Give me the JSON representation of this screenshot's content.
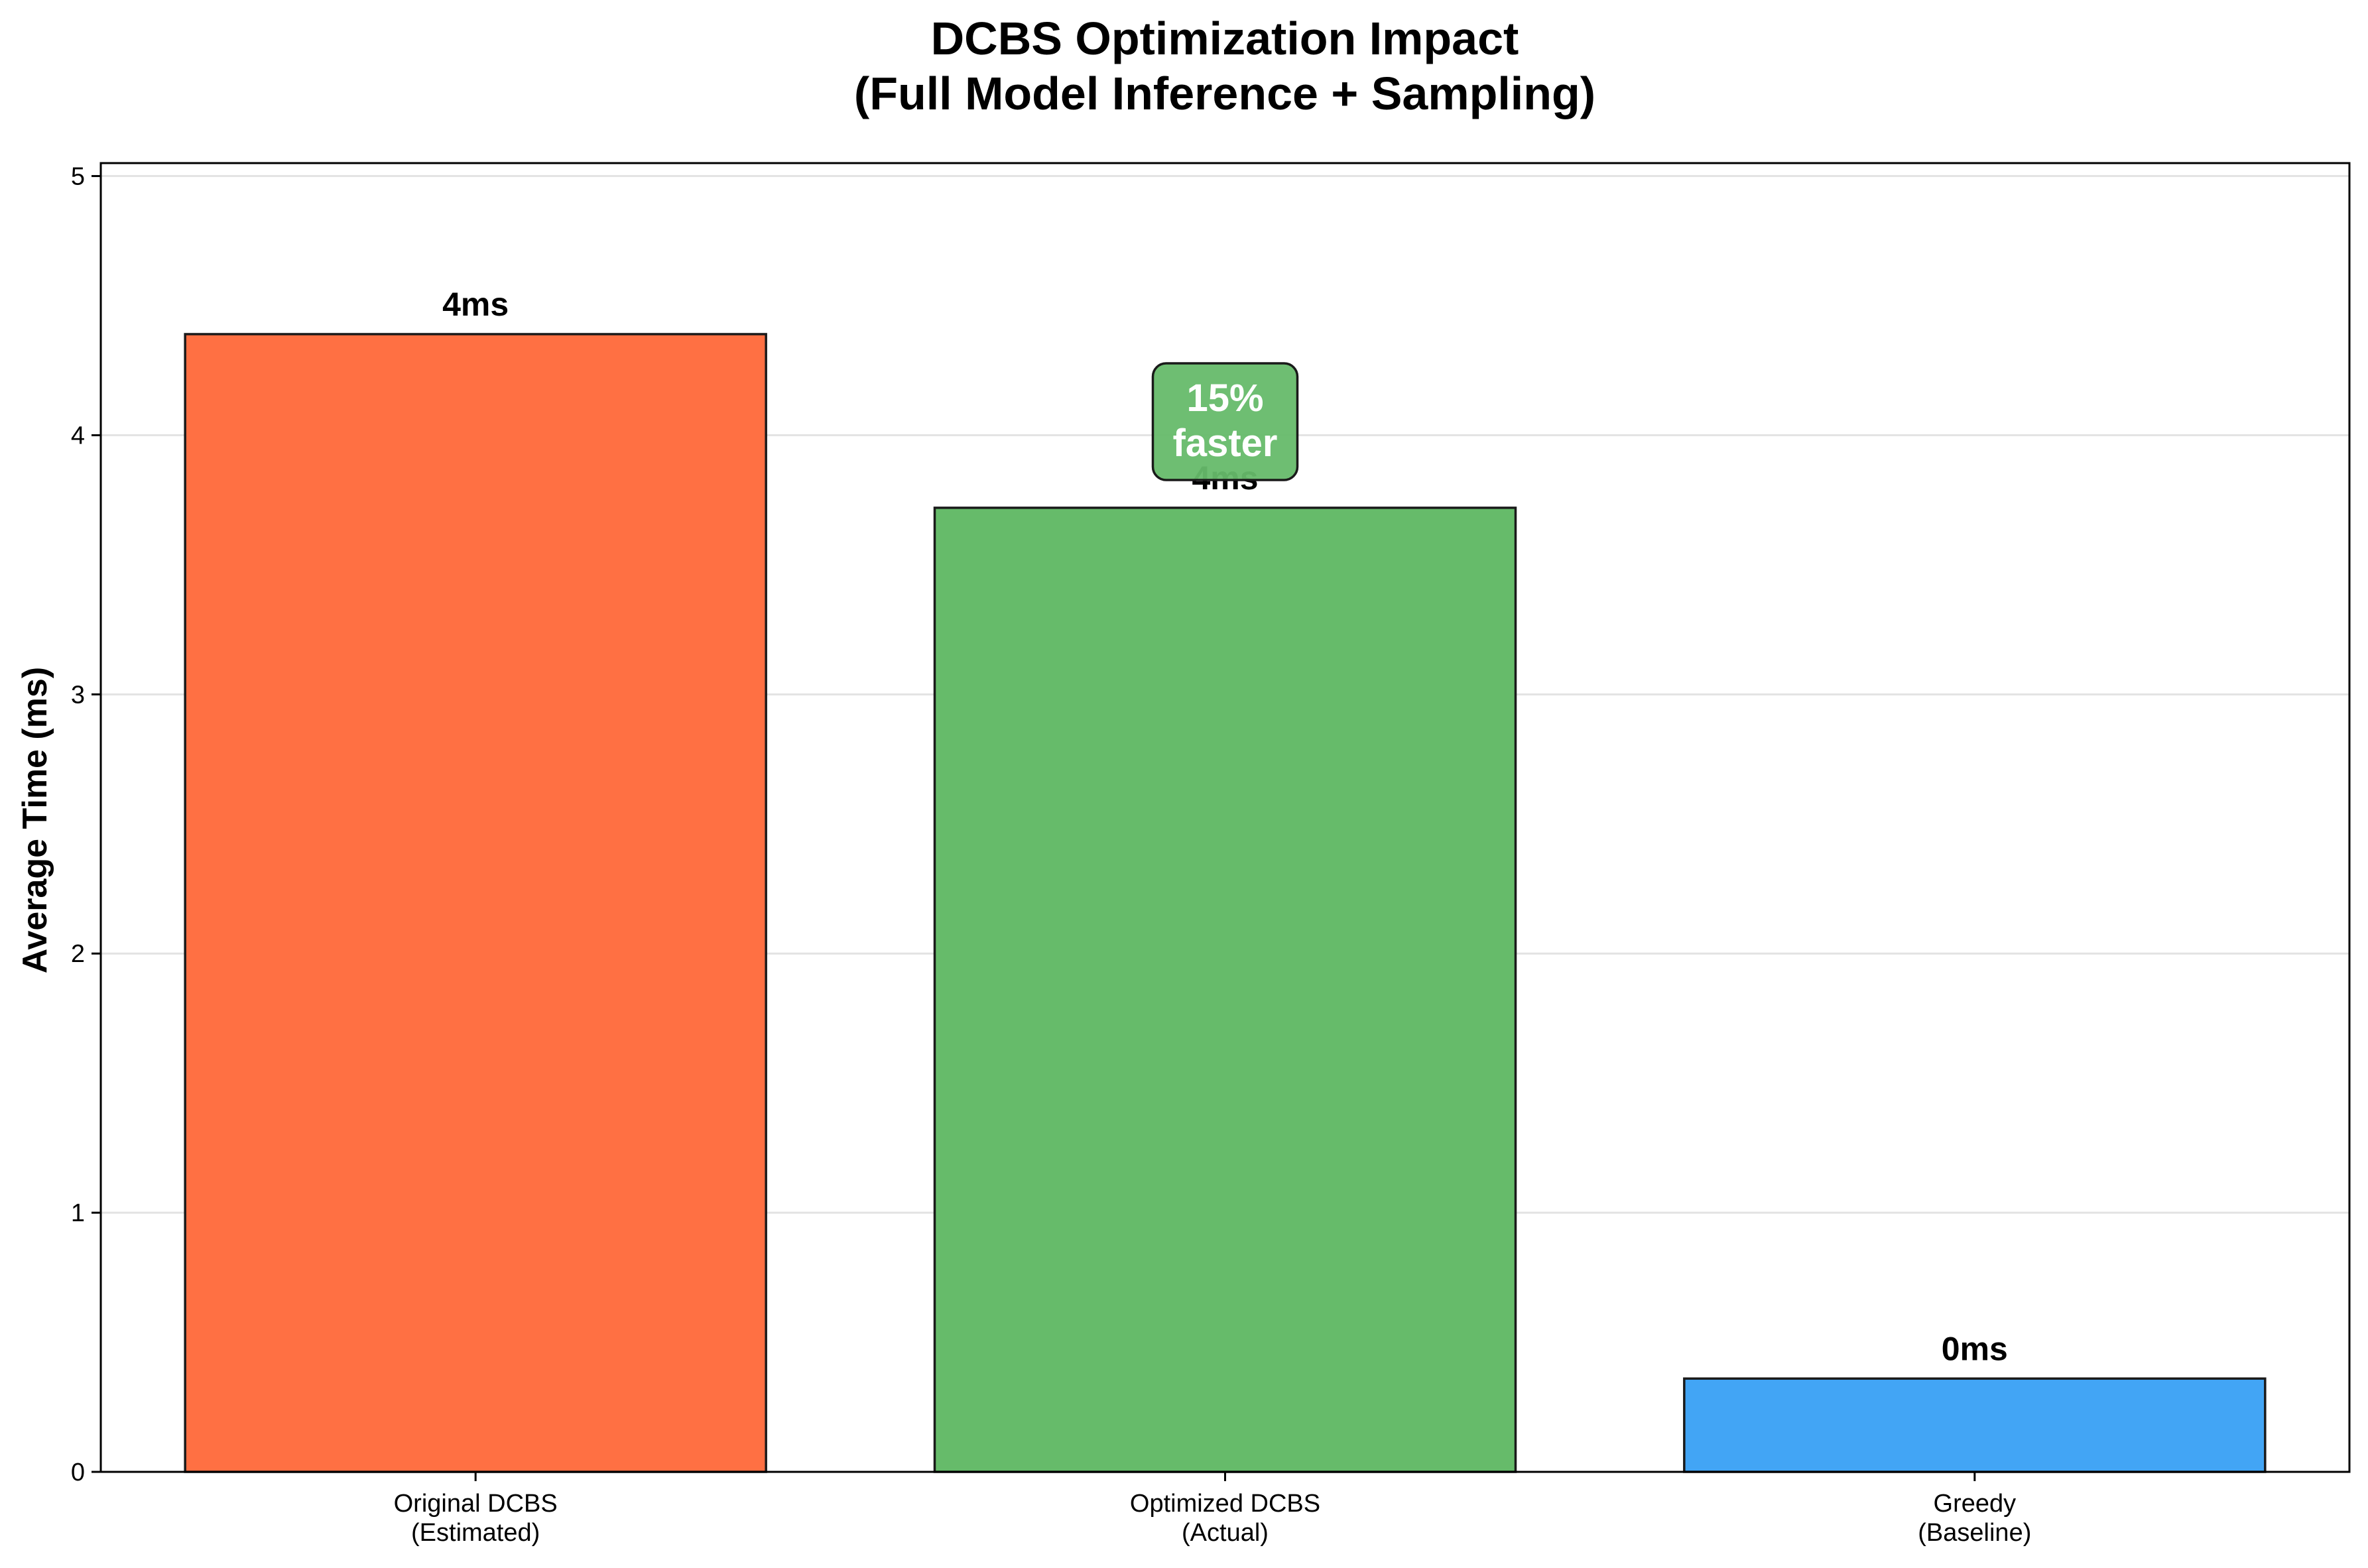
{
  "chart_data": {
    "type": "bar",
    "title": "DCBS Optimization Impact",
    "subtitle": "(Full Model Inference + Sampling)",
    "xlabel": "",
    "ylabel": "Average Time (ms)",
    "ylim": [
      0,
      5.05
    ],
    "yticks": [
      "0",
      "1",
      "2",
      "3",
      "4",
      "5"
    ],
    "grid": "y",
    "categories": [
      [
        "Original DCBS",
        "(Estimated)"
      ],
      [
        "Optimized DCBS",
        "(Actual)"
      ],
      [
        "Greedy",
        "(Baseline)"
      ]
    ],
    "values": [
      4.39,
      3.72,
      0.36
    ],
    "value_labels": [
      "4ms",
      "4ms",
      "0ms"
    ],
    "colors": [
      "#ff7043",
      "#66bb6a",
      "#42a5f5"
    ],
    "annotation": {
      "lines": [
        "15%",
        "faster"
      ],
      "bar_index": 1,
      "color": "#66bb6a"
    }
  }
}
